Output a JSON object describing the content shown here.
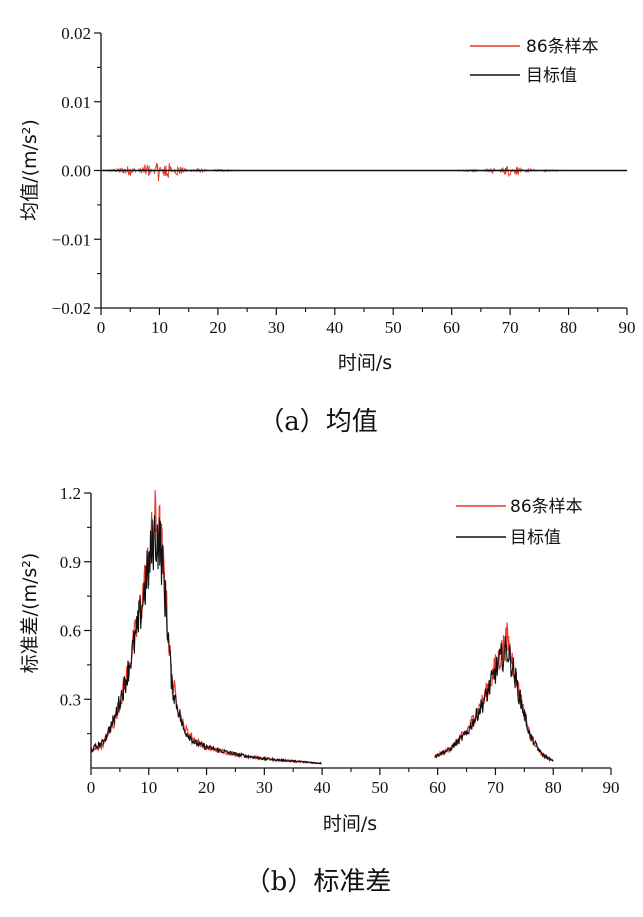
{
  "chart_data": [
    {
      "type": "line",
      "title": "",
      "caption": "（a）均值",
      "xlabel": "时间/s",
      "ylabel": "均值/(m/s²)",
      "xlim": [
        0,
        90
      ],
      "ylim": [
        -0.02,
        0.02
      ],
      "x_ticks": [
        "0",
        "10",
        "20",
        "30",
        "40",
        "50",
        "60",
        "70",
        "80",
        "90"
      ],
      "y_ticks": [
        "0.02",
        "0.01",
        "0.00",
        "−0.01",
        "−0.02"
      ],
      "legend_position": "top-right",
      "series": [
        {
          "name": "86条样本",
          "color": "#e8392b",
          "description_points": [
            [
              0,
              0
            ],
            [
              3,
              0.0003
            ],
            [
              5,
              0.0008
            ],
            [
              8,
              -0.0012
            ],
            [
              10,
              0.0018
            ],
            [
              11,
              -0.0022
            ],
            [
              13,
              0.0009
            ],
            [
              16,
              -0.0004
            ],
            [
              20,
              0.0002
            ],
            [
              25,
              0
            ],
            [
              30,
              0
            ],
            [
              40,
              0
            ],
            [
              60,
              0
            ],
            [
              64,
              0.0002
            ],
            [
              67,
              -0.0004
            ],
            [
              69,
              0.0006
            ],
            [
              70,
              0.0009
            ],
            [
              71,
              -0.0008
            ],
            [
              73,
              0.0004
            ],
            [
              76,
              -0.0002
            ],
            [
              80,
              0
            ]
          ]
        },
        {
          "name": "目标值",
          "color": "#111111",
          "values_constant": 0
        }
      ]
    },
    {
      "type": "line",
      "title": "",
      "caption": "（b）标准差",
      "xlabel": "时间/s",
      "ylabel": "标准差/(m/s²)",
      "xlim": [
        0,
        90
      ],
      "ylim": [
        0,
        1.2
      ],
      "x_ticks": [
        "0",
        "10",
        "20",
        "30",
        "40",
        "50",
        "60",
        "70",
        "80",
        "90"
      ],
      "y_ticks": [
        "1.2",
        "0.9",
        "0.6",
        "0.3"
      ],
      "legend_position": "top-right",
      "series": [
        {
          "name": "86条样本",
          "color": "#e8392b",
          "segments": [
            [
              [
                0,
                0.07
              ],
              [
                2,
                0.1
              ],
              [
                4,
                0.2
              ],
              [
                6,
                0.38
              ],
              [
                8,
                0.62
              ],
              [
                10,
                0.9
              ],
              [
                11,
                1.08
              ],
              [
                12,
                1.02
              ],
              [
                13,
                0.72
              ],
              [
                14,
                0.38
              ],
              [
                16,
                0.18
              ],
              [
                18,
                0.12
              ],
              [
                20,
                0.09
              ],
              [
                25,
                0.06
              ],
              [
                30,
                0.04
              ],
              [
                35,
                0.03
              ],
              [
                40,
                0.02
              ]
            ],
            [
              [
                59.5,
                0.05
              ],
              [
                62,
                0.08
              ],
              [
                65,
                0.16
              ],
              [
                68,
                0.3
              ],
              [
                70,
                0.44
              ],
              [
                71,
                0.5
              ],
              [
                72,
                0.56
              ],
              [
                73,
                0.46
              ],
              [
                74,
                0.34
              ],
              [
                76,
                0.14
              ],
              [
                78,
                0.06
              ],
              [
                80,
                0.03
              ]
            ]
          ]
        },
        {
          "name": "目标值",
          "color": "#111111",
          "segments": [
            [
              [
                0,
                0.08
              ],
              [
                2,
                0.11
              ],
              [
                4,
                0.21
              ],
              [
                6,
                0.38
              ],
              [
                8,
                0.6
              ],
              [
                10,
                0.88
              ],
              [
                11,
                1.02
              ],
              [
                12,
                0.98
              ],
              [
                13,
                0.7
              ],
              [
                14,
                0.36
              ],
              [
                16,
                0.17
              ],
              [
                18,
                0.11
              ],
              [
                20,
                0.09
              ],
              [
                25,
                0.06
              ],
              [
                30,
                0.04
              ],
              [
                35,
                0.03
              ],
              [
                40,
                0.02
              ]
            ],
            [
              [
                59.5,
                0.05
              ],
              [
                62,
                0.08
              ],
              [
                65,
                0.15
              ],
              [
                68,
                0.29
              ],
              [
                70,
                0.42
              ],
              [
                71,
                0.48
              ],
              [
                72,
                0.52
              ],
              [
                73,
                0.44
              ],
              [
                74,
                0.33
              ],
              [
                76,
                0.14
              ],
              [
                78,
                0.06
              ],
              [
                80,
                0.03
              ]
            ]
          ]
        }
      ]
    }
  ]
}
